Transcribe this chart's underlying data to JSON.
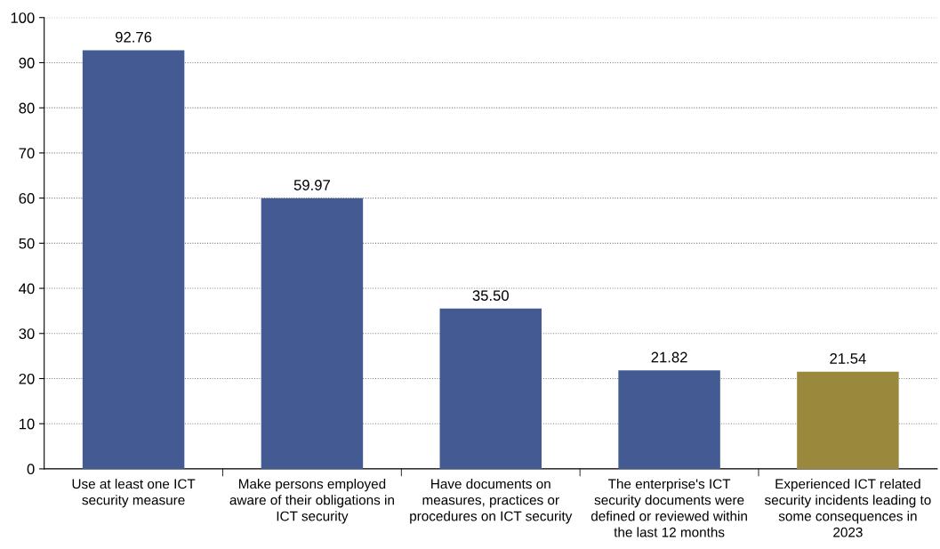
{
  "chart_data": {
    "type": "bar",
    "categories": [
      "Use at least one ICT\nsecurity measure",
      "Make persons employed\naware of their obligations in\nICT security",
      "Have documents on\nmeasures, practices or\nprocedures on ICT security",
      "The enterprise's ICT\nsecurity documents were\ndefined or reviewed within\nthe last 12 months",
      "Experienced ICT related\nsecurity incidents leading to\nsome consequences in\n2023"
    ],
    "values": [
      92.76,
      59.97,
      35.5,
      21.82,
      21.54
    ],
    "colors": [
      "#435a93",
      "#435a93",
      "#435a93",
      "#435a93",
      "#9a893d"
    ],
    "value_labels": [
      "92.76",
      "59.97",
      "35.50",
      "21.82",
      "21.54"
    ],
    "ylim": [
      0,
      100
    ],
    "yticks": [
      0,
      10,
      20,
      30,
      40,
      50,
      60,
      70,
      80,
      90,
      100
    ],
    "grid": "y",
    "legend": false
  }
}
